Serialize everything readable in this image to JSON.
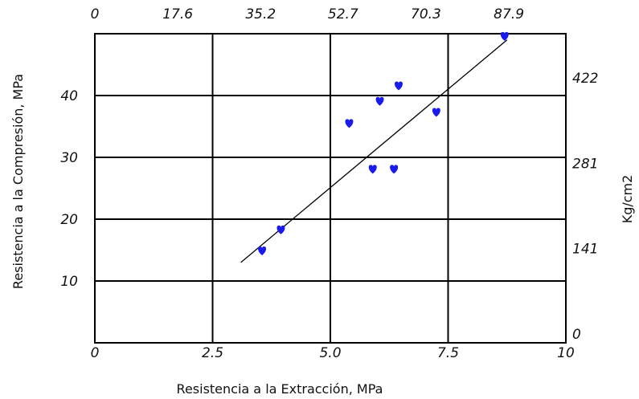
{
  "chart_data": {
    "type": "scatter",
    "xlabel": "Resistencia a la Extracción, MPa",
    "ylabel": "Resistencia a la Compresión, MPa",
    "y2label": "Kg/cm2",
    "xlim": [
      0,
      10
    ],
    "ylim": [
      0,
      50
    ],
    "grid": true,
    "x_ticks": [
      {
        "value": 0,
        "label": "0"
      },
      {
        "value": 2.5,
        "label": "2.5"
      },
      {
        "value": 5,
        "label": "5.0"
      },
      {
        "value": 7.5,
        "label": "7.5"
      },
      {
        "value": 10,
        "label": "10"
      }
    ],
    "y_ticks": [
      {
        "value": 10,
        "label": "10"
      },
      {
        "value": 20,
        "label": "20"
      },
      {
        "value": 30,
        "label": "30"
      },
      {
        "value": 40,
        "label": "40"
      }
    ],
    "x2_ticks": [
      {
        "value": 0,
        "label": "0"
      },
      {
        "value": 1.76,
        "label": "17.6"
      },
      {
        "value": 3.52,
        "label": "35.2"
      },
      {
        "value": 5.27,
        "label": "52.7"
      },
      {
        "value": 7.03,
        "label": "70.3"
      },
      {
        "value": 8.79,
        "label": "87.9"
      }
    ],
    "y2_ticks": [
      {
        "value": 0,
        "label": "0"
      },
      {
        "value": 13.8,
        "label": "141"
      },
      {
        "value": 27.6,
        "label": "281"
      },
      {
        "value": 41.4,
        "label": "422"
      }
    ],
    "points": [
      {
        "x": 3.55,
        "y": 14.8
      },
      {
        "x": 3.95,
        "y": 18.2
      },
      {
        "x": 5.4,
        "y": 35.4
      },
      {
        "x": 5.9,
        "y": 28.0
      },
      {
        "x": 6.05,
        "y": 39.0
      },
      {
        "x": 6.35,
        "y": 28.0
      },
      {
        "x": 6.45,
        "y": 41.5
      },
      {
        "x": 7.25,
        "y": 37.2
      },
      {
        "x": 8.7,
        "y": 49.5
      }
    ],
    "trendline": {
      "x": [
        3.1,
        8.75
      ],
      "y": [
        13.0,
        49.0
      ]
    },
    "colors": {
      "points": "#1a1aee",
      "line": "#000000",
      "grid": "#000000"
    }
  }
}
